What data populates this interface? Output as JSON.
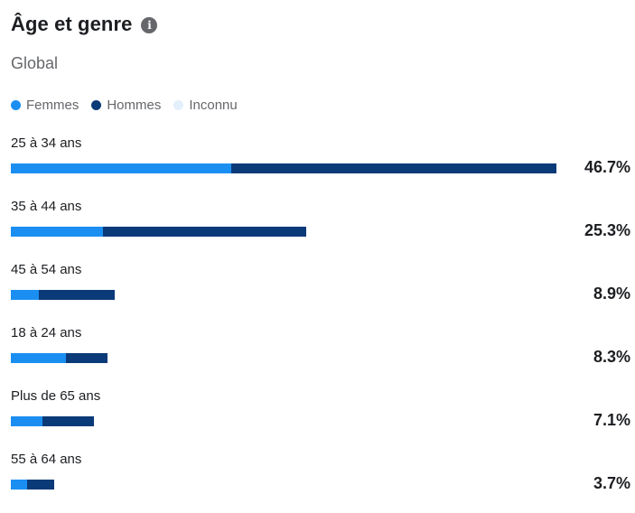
{
  "header": {
    "title": "Âge et genre",
    "info_icon": "info-icon",
    "subtitle": "Global"
  },
  "colors": {
    "femmes": "#1b8ef2",
    "hommes": "#0b3a78",
    "inconnu": "#e4effc"
  },
  "legend": [
    {
      "label": "Femmes",
      "color": "#1b8ef2"
    },
    {
      "label": "Hommes",
      "color": "#0b3a78"
    },
    {
      "label": "Inconnu",
      "color": "#e4effc"
    }
  ],
  "chart_data": {
    "type": "bar",
    "orientation": "horizontal",
    "stacked": true,
    "title": "Âge et genre",
    "subtitle": "Global",
    "categories": [
      "25 à 34 ans",
      "35 à 44 ans",
      "45 à 54 ans",
      "18 à 24 ans",
      "Plus de 65 ans",
      "55 à 64 ans"
    ],
    "totals_label": [
      "46.7%",
      "25.3%",
      "8.9%",
      "8.3%",
      "7.1%",
      "3.7%"
    ],
    "totals": [
      46.7,
      25.3,
      8.9,
      8.3,
      7.1,
      3.7
    ],
    "series": [
      {
        "name": "Femmes",
        "values": [
          18.9,
          7.9,
          2.4,
          4.7,
          2.7,
          1.4
        ]
      },
      {
        "name": "Hommes",
        "values": [
          27.8,
          17.4,
          6.5,
          3.6,
          4.4,
          2.3
        ]
      },
      {
        "name": "Inconnu",
        "values": [
          0,
          0,
          0,
          0,
          0,
          0
        ]
      }
    ],
    "xlim": [
      0,
      46.7
    ],
    "legend_position": "top-left",
    "grid": false
  }
}
